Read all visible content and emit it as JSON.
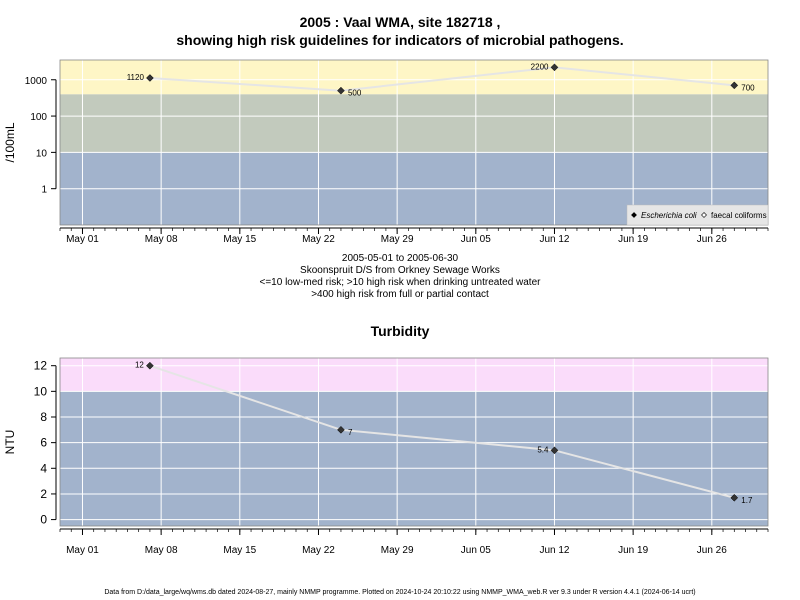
{
  "title_line1": "2005 : Vaal WMA, site 182718 ,",
  "title_line2": "showing high risk guidelines for indicators of microbial pathogens.",
  "subtitle": [
    "2005-05-01 to 2005-06-30",
    "Skoonspruit D/S from Orkney Sewage Works",
    "<=10 low-med risk; >10 high risk when drinking untreated water",
    ">400 high risk from full or partial contact"
  ],
  "footer": "Data from D:/data_large/wq/wms.db dated 2024-08-27, mainly NMMP programme. Plotted on 2024-10-24 20:10:22 using NMMP_WMA_web.R ver 9.3 under R version 4.4.1 (2024-06-14 ucrt)",
  "colors": {
    "band_low": "#a2b3cc",
    "band_mid": "#c2cabd",
    "band_high": "#fef6c6",
    "band_pink": "#fadcfa",
    "line": "#e5e5e5",
    "grid": "#ffffff",
    "point": "#333333"
  },
  "chart_data": [
    {
      "type": "line",
      "title": "",
      "ylabel": "/100mL",
      "yscale": "log",
      "x_ticks": [
        "May 01",
        "May 08",
        "May 15",
        "May 22",
        "May 29",
        "Jun 05",
        "Jun 12",
        "Jun 19",
        "Jun 26"
      ],
      "y_ticks": [
        "1",
        "10",
        "100",
        "1000"
      ],
      "xlim": [
        "2005-04-29",
        "2005-07-01"
      ],
      "ylim": [
        0.1,
        3500
      ],
      "risk_bands": [
        {
          "from": 0.1,
          "to": 10,
          "color": "band_low"
        },
        {
          "from": 10,
          "to": 400,
          "color": "band_mid"
        },
        {
          "from": 400,
          "to": 3500,
          "color": "band_high"
        }
      ],
      "legend": {
        "position": "bottom-right",
        "entries": [
          {
            "label": "Escherichia coli",
            "marker": "filled-diamond",
            "italic": true
          },
          {
            "label": "faecal coliforms",
            "marker": "open-diamond",
            "italic": false
          }
        ]
      },
      "series": [
        {
          "name": "Escherichia coli",
          "points": [
            {
              "x": "2005-05-07",
              "y": 1120,
              "label": "1120",
              "label_side": "left"
            },
            {
              "x": "2005-05-24",
              "y": 500,
              "label": "500",
              "label_side": "right"
            },
            {
              "x": "2005-06-12",
              "y": 2200,
              "label": "2200",
              "label_side": "left"
            },
            {
              "x": "2005-06-28",
              "y": 700,
              "label": "700",
              "label_side": "right"
            }
          ]
        }
      ]
    },
    {
      "type": "line",
      "title": "Turbidity",
      "ylabel": "NTU",
      "yscale": "linear",
      "x_ticks": [
        "May 01",
        "May 08",
        "May 15",
        "May 22",
        "May 29",
        "Jun 05",
        "Jun 12",
        "Jun 19",
        "Jun 26"
      ],
      "y_ticks": [
        "0",
        "2",
        "4",
        "6",
        "8",
        "10",
        "12"
      ],
      "xlim": [
        "2005-04-29",
        "2005-07-01"
      ],
      "ylim": [
        -0.5,
        12.6
      ],
      "risk_bands": [
        {
          "from": -0.5,
          "to": 10,
          "color": "band_low"
        },
        {
          "from": 10,
          "to": 12.6,
          "color": "band_pink"
        }
      ],
      "series": [
        {
          "name": "",
          "points": [
            {
              "x": "2005-05-07",
              "y": 12,
              "label": "12",
              "label_side": "left"
            },
            {
              "x": "2005-05-24",
              "y": 7,
              "label": "7",
              "label_side": "right"
            },
            {
              "x": "2005-06-12",
              "y": 5.4,
              "label": "5.4",
              "label_side": "left"
            },
            {
              "x": "2005-06-28",
              "y": 1.7,
              "label": "1.7",
              "label_side": "right"
            }
          ]
        }
      ]
    }
  ]
}
